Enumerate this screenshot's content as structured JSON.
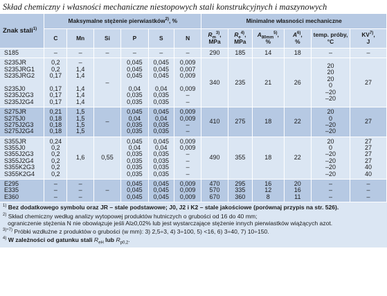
{
  "title": "Skład chemiczny i własności mechaniczne niestopowych stali konstrukcyjnych i maszynowych",
  "header": {
    "znak": "Znak stali",
    "znak_sup": "1)",
    "chem_group": "Maksymalne stężenie pierwiastków",
    "chem_group_sup": "2)",
    "chem_group_unit": ", %",
    "mech_group": "Minimalne własności mechaniczne",
    "elements": [
      "C",
      "Mn",
      "Si",
      "P",
      "S",
      "N"
    ],
    "rm": "R",
    "rm_sub": "m",
    "rm_sup": "3)",
    "rm_unit": "MPa",
    "re": "R",
    "re_sub": "e",
    "re_sup": "4)",
    "re_unit": "MPa",
    "a80": "A",
    "a80_sub": "80mm",
    "a80_sup": "5)",
    "a80_unit": "%",
    "a": "A",
    "a_sup": "6)",
    "a_unit": "%",
    "temp": "temp. próby,",
    "temp_unit": "°C",
    "kv": "KV",
    "kv_sup": "7)",
    "kv_unit": "J"
  },
  "groups": [
    {
      "shade": "light",
      "grades": [
        "S185"
      ],
      "C": [
        "–"
      ],
      "Mn": [
        "–"
      ],
      "Si": "–",
      "P": [
        "–"
      ],
      "S": [
        "–"
      ],
      "N": [
        "–"
      ],
      "Rm": [
        "290"
      ],
      "Re": [
        "185"
      ],
      "A80": [
        "14"
      ],
      "A": [
        "18"
      ],
      "temp": [
        "–"
      ],
      "KV": [
        "–"
      ]
    },
    {
      "shade": "light",
      "grades": [
        "S235JR",
        "S235JRG1",
        "S235JRG2",
        "",
        "S235J0",
        "S235J2G3",
        "S235J2G4"
      ],
      "C": [
        "0,2",
        "0,2",
        "0,17",
        "",
        "0,17",
        "0,17",
        "0,17"
      ],
      "Mn": [
        "–",
        "1,4",
        "1,4",
        "",
        "1,4",
        "1,4",
        "1,4"
      ],
      "Si": "–",
      "P": [
        "0,045",
        "0,045",
        "0,045",
        "",
        "0,04",
        "0,035",
        "0,035"
      ],
      "S": [
        "0,045",
        "0,045",
        "0,045",
        "",
        "0,04",
        "0,035",
        "0,035"
      ],
      "N": [
        "0,009",
        "0,007",
        "0,009",
        "",
        "0,009",
        "–",
        "–"
      ],
      "Rm": [
        "340"
      ],
      "Re": [
        "235"
      ],
      "A80": [
        "21"
      ],
      "A": [
        "26"
      ],
      "temp": [
        "20",
        "20",
        "20",
        "0",
        "–20",
        "–20"
      ],
      "KV": [
        "27"
      ]
    },
    {
      "shade": "dark",
      "grades": [
        "S275JR",
        "S275J0",
        "S275J2G3",
        "S275J2G4"
      ],
      "C": [
        "0,21",
        "0,18",
        "0,18",
        "0,18"
      ],
      "Mn": [
        "1,5",
        "1,5",
        "1,5",
        "1,5"
      ],
      "Si": "–",
      "P": [
        "0,045",
        "0,04",
        "0,035",
        "0,035"
      ],
      "S": [
        "0,045",
        "0,04",
        "0,035",
        "0,035"
      ],
      "N": [
        "0,009",
        "0,009",
        "–",
        "–"
      ],
      "Rm": [
        "410"
      ],
      "Re": [
        "275"
      ],
      "A80": [
        "18"
      ],
      "A": [
        "22"
      ],
      "temp": [
        "20",
        "0",
        "–20",
        "–20"
      ],
      "KV": [
        "27"
      ]
    },
    {
      "shade": "light",
      "grades": [
        "S355JR",
        "S355J0",
        "S355J2G3",
        "S355J2G4",
        "S355K2G3",
        "S355K2G4"
      ],
      "C": [
        "0,24",
        "0,2",
        "0,2",
        "0,2",
        "0,2",
        "0,2"
      ],
      "Mn": [
        "1,6"
      ],
      "Si": "0,55",
      "P": [
        "0,045",
        "0,04",
        "0,035",
        "0,035",
        "0,035",
        "0,035"
      ],
      "S": [
        "0,045",
        "0,04",
        "0,035",
        "0,035",
        "0,035",
        "0,035"
      ],
      "N": [
        "0,009",
        "0,009",
        "–",
        "–",
        "–",
        "–"
      ],
      "Rm": [
        "490"
      ],
      "Re": [
        "355"
      ],
      "A80": [
        "18"
      ],
      "A": [
        "22"
      ],
      "temp": [
        "20",
        "0",
        "–20",
        "–20",
        "–20",
        "–20"
      ],
      "KV": [
        "27",
        "27",
        "27",
        "27",
        "40",
        "40"
      ]
    },
    {
      "shade": "dark",
      "grades": [
        "E295",
        "E335",
        "E360"
      ],
      "C": [
        "–",
        "–",
        "–"
      ],
      "Mn": [
        "–",
        "–",
        "–"
      ],
      "Si": "–",
      "P": [
        "0,045",
        "0,045",
        "0,045"
      ],
      "S": [
        "0,045",
        "0,045",
        "0,045"
      ],
      "N": [
        "0,009",
        "0,009",
        "0,009"
      ],
      "Rm": [
        "470",
        "570",
        "670"
      ],
      "Re": [
        "295",
        "335",
        "360"
      ],
      "A80": [
        "16",
        "12",
        "8"
      ],
      "A": [
        "20",
        "16",
        "11"
      ],
      "temp": [
        "–",
        "–",
        "–"
      ],
      "KV": [
        "–",
        "–",
        "–"
      ]
    }
  ],
  "notes": {
    "n1_mark": "1)",
    "n1": "Bez dodatkowego symbolu oraz JR – stale podstawowe; J0, J2 i K2 – stale jakościowe (porównaj przypis na str. 526).",
    "n2_mark": "2)",
    "n2a": "Skład chemiczny według analizy wytopowej produktów hutniczych o grubości od 16 do 40 mm;",
    "n2b": "ograniczenie stężenia N nie obowiązuje jeśli Al≥0,02% lub jest wystarczające stężenie innych pierwiastków wiążących azot.",
    "n3_mark": "3)÷7)",
    "n3": "Próbki wzdłużne z produktów o grubości (w mm):",
    "n3_items": [
      "3) 2,5÷3,",
      "4) 3÷100,",
      "5) <16,",
      "6) 3÷40,",
      "7) 10÷150."
    ],
    "n4_mark": "4)",
    "n4a": "W zależności od gatunku stali",
    "n4_reh": "R",
    "n4_reh_sub": "eH",
    "n4_or": "lub",
    "n4_rp": "R",
    "n4_rp_sub": "p0,2",
    "n4_end": "."
  }
}
